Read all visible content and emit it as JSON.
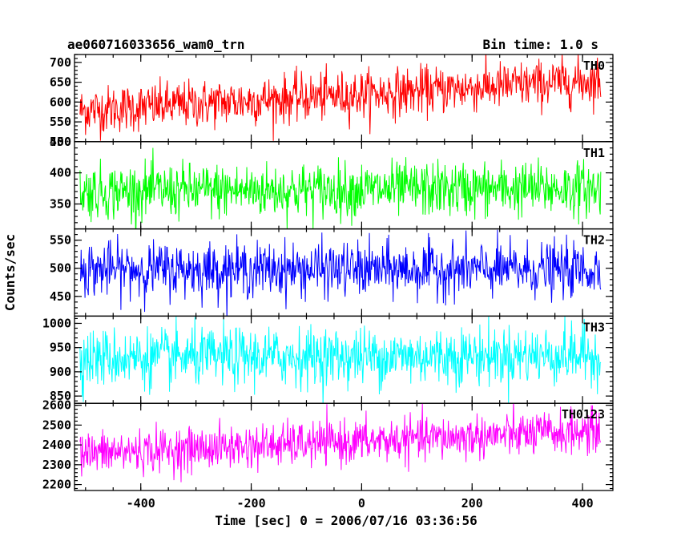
{
  "header": {
    "title": "ae060716033656_wam0_trn",
    "bin_time": "Bin time: 1.0 s"
  },
  "chart_data": {
    "type": "line",
    "xlabel": "Time [sec] 0 = 2006/07/16 03:36:56",
    "ylabel": "Counts/sec",
    "xlim": [
      -520,
      455
    ],
    "x_ticks": [
      -400,
      -200,
      0,
      200,
      400
    ],
    "x_range_data": [
      -510,
      433
    ],
    "bin_time_s": 1.0,
    "panels": [
      {
        "name": "TH0",
        "color": "#ff0000",
        "ylim": [
          500,
          720
        ],
        "y_ticks": [
          500,
          550,
          600,
          650,
          700
        ],
        "trend_start": 578,
        "trend_end": 655,
        "noise_sd": 30
      },
      {
        "name": "TH1",
        "color": "#00ff00",
        "ylim": [
          310,
          450
        ],
        "y_ticks": [
          350,
          400,
          450
        ],
        "trend_start": 370,
        "trend_end": 375,
        "noise_sd": 22
      },
      {
        "name": "TH2",
        "color": "#0000ff",
        "ylim": [
          415,
          570
        ],
        "y_ticks": [
          450,
          500,
          550
        ],
        "trend_start": 498,
        "trend_end": 497,
        "noise_sd": 24
      },
      {
        "name": "TH3",
        "color": "#00ffff",
        "ylim": [
          835,
          1015
        ],
        "y_ticks": [
          850,
          900,
          950,
          1000
        ],
        "trend_start": 928,
        "trend_end": 935,
        "noise_sd": 30
      },
      {
        "name": "TH0123",
        "color": "#ff00ff",
        "ylim": [
          2170,
          2610
        ],
        "y_ticks": [
          2200,
          2300,
          2400,
          2500,
          2600
        ],
        "trend_start": 2355,
        "trend_end": 2470,
        "noise_sd": 55
      }
    ]
  }
}
